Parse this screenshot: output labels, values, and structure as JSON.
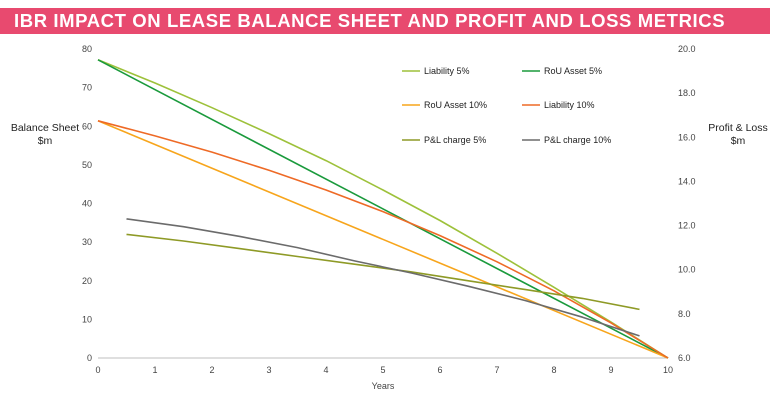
{
  "header": {
    "title": "IBR IMPACT ON LEASE BALANCE SHEET AND PROFIT AND LOSS METRICS"
  },
  "chart_data": {
    "type": "line",
    "xlabel": "Years",
    "ylabel": "Balance Sheet $m",
    "y2label": "Profit & Loss $m",
    "xlim": [
      0,
      10
    ],
    "ylim": [
      0,
      80
    ],
    "y2lim": [
      6.0,
      20.0
    ],
    "xticks": [
      "0",
      "1",
      "2",
      "3",
      "4",
      "5",
      "6",
      "7",
      "8",
      "9",
      "10"
    ],
    "yticks": [
      "0",
      "10",
      "20",
      "30",
      "40",
      "50",
      "60",
      "70",
      "80"
    ],
    "y2ticks": [
      "6.0",
      "8.0",
      "10.0",
      "12.0",
      "14.0",
      "16.0",
      "18.0",
      "20.0"
    ],
    "grid": false,
    "legend_position": "top-right",
    "series": [
      {
        "name": "Liability 5%",
        "axis": "left",
        "color": "#9dc13a",
        "x": [
          0,
          1,
          2,
          3,
          4,
          5,
          6,
          7,
          8,
          9,
          10
        ],
        "values": [
          77.2,
          71.2,
          64.8,
          58.1,
          51.1,
          43.5,
          35.6,
          27.1,
          18.3,
          9.3,
          0
        ]
      },
      {
        "name": "RoU Asset 5%",
        "axis": "left",
        "color": "#1a9a3c",
        "x": [
          0,
          10
        ],
        "values": [
          77.2,
          0
        ]
      },
      {
        "name": "RoU Asset 10%",
        "axis": "left",
        "color": "#f7a51c",
        "x": [
          0,
          10
        ],
        "values": [
          61.4,
          0
        ]
      },
      {
        "name": "Liability 10%",
        "axis": "left",
        "color": "#ee6a26",
        "x": [
          0,
          1,
          2,
          3,
          4,
          5,
          6,
          7,
          8,
          9,
          10
        ],
        "values": [
          61.4,
          57.5,
          53.3,
          48.6,
          43.5,
          37.9,
          31.7,
          24.9,
          17.4,
          9.1,
          0
        ]
      },
      {
        "name": "P&L charge 5%",
        "axis": "right",
        "color": "#8e9a26",
        "x": [
          0.5,
          1.5,
          2.5,
          3.5,
          4.5,
          5.5,
          6.5,
          7.5,
          8.5,
          9.5
        ],
        "values": [
          11.6,
          11.3,
          10.95,
          10.6,
          10.25,
          9.9,
          9.5,
          9.1,
          8.7,
          8.2
        ]
      },
      {
        "name": "P&L charge 10%",
        "axis": "right",
        "color": "#6b6b6b",
        "x": [
          0.5,
          1.5,
          2.5,
          3.5,
          4.5,
          5.5,
          6.5,
          7.5,
          8.5,
          9.5
        ],
        "values": [
          12.3,
          11.95,
          11.5,
          11.0,
          10.4,
          9.85,
          9.25,
          8.6,
          7.85,
          7.0
        ]
      }
    ]
  }
}
